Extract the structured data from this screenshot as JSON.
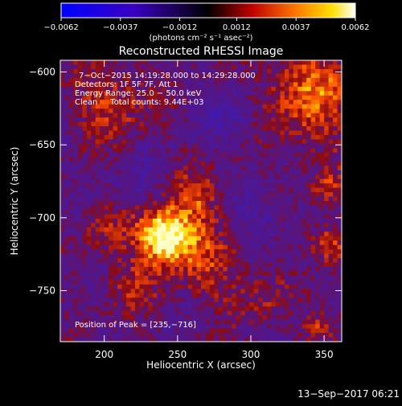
{
  "colorbar": {
    "ticks": [
      "−0.0062",
      "−0.0037",
      "−0.0012",
      "0.0012",
      "0.0037",
      "0.0062"
    ],
    "tick_values": [
      -0.0062,
      -0.0037,
      -0.0012,
      0.0012,
      0.0037,
      0.0062
    ],
    "range": [
      -0.0062,
      0.0062
    ],
    "unit_label": "(photons cm⁻² s⁻¹ asec⁻²)",
    "colors": [
      "#0000ff",
      "#000000",
      "#ff0000",
      "#ffff00",
      "#ffffff"
    ]
  },
  "chart_data": {
    "type": "heatmap",
    "title": "Reconstructed RHESSI Image",
    "xlabel": "Heliocentric X (arcsec)",
    "ylabel": "Heliocentric Y (arcsec)",
    "xlim": [
      170,
      362
    ],
    "ylim": [
      -785,
      -592
    ],
    "xticks": [
      200,
      250,
      300,
      350
    ],
    "yticks": [
      -600,
      -650,
      -700,
      -750
    ],
    "xtick_labels": [
      "200",
      "250",
      "300",
      "350"
    ],
    "ytick_labels": [
      "−600",
      "−650",
      "−700",
      "−750"
    ],
    "annotations": [
      "7−Oct−2015 14:19:28.000 to 14:29:28.000",
      "Detectors: 1F 5F 7F, Att 1",
      "Energy Range: 25.0 − 50.0 keV",
      "Clean     Total counts: 9.44E+03"
    ],
    "peak_label": "Position of Peak = [235,−716]",
    "peak": [
      235,
      -716
    ]
  },
  "footer": {
    "timestamp": "13−Sep−2017 06:21"
  }
}
